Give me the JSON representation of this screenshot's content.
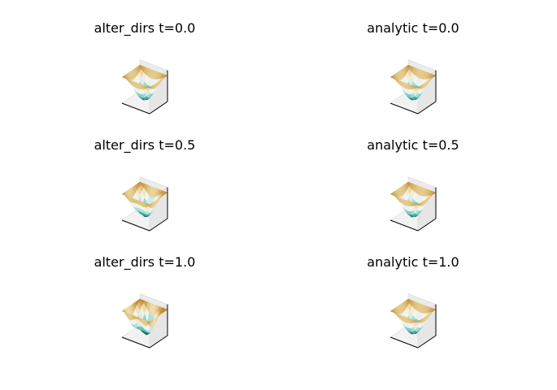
{
  "chart_data": [
    {
      "type": "surface",
      "title": "alter_dirs t=0.0",
      "colormap": "BrBG"
    },
    {
      "type": "surface",
      "title": "analytic t=0.0",
      "colormap": "BrBG"
    },
    {
      "type": "surface",
      "title": "alter_dirs t=0.5",
      "colormap": "BrBG"
    },
    {
      "type": "surface",
      "title": "analytic t=0.5",
      "colormap": "BrBG"
    },
    {
      "type": "surface",
      "title": "alter_dirs t=1.0",
      "colormap": "BrBG"
    },
    {
      "type": "surface",
      "title": "analytic t=1.0",
      "colormap": "BrBG"
    }
  ],
  "colors": {
    "pane": "#f2f2f2",
    "edge": "#d9d9d9",
    "axis": "#000000"
  }
}
